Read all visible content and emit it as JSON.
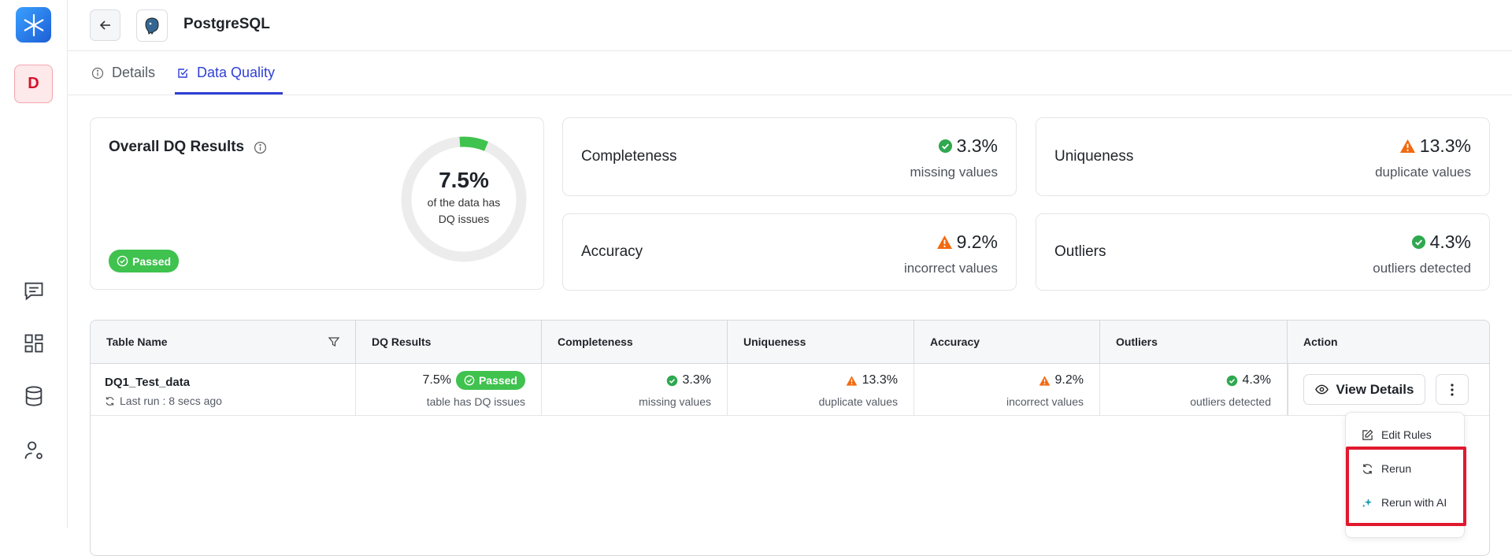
{
  "header": {
    "title": "PostgreSQL"
  },
  "sidebar": {
    "avatar": "D"
  },
  "tabs": [
    "Details",
    "Data Quality"
  ],
  "overall": {
    "title": "Overall DQ Results",
    "value": {
      "value": 7.5,
      "label": "7.5%"
    },
    "caption": "of the data has DQ issues",
    "status": "Passed"
  },
  "metrics": [
    {
      "name": "Completeness",
      "value": "3.3%",
      "caption": "missing values",
      "status": "ok"
    },
    {
      "name": "Uniqueness",
      "value": "13.3%",
      "caption": "duplicate values",
      "status": "warn"
    },
    {
      "name": "Accuracy",
      "value": "9.2%",
      "caption": "incorrect values",
      "status": "warn"
    },
    {
      "name": "Outliers",
      "value": "4.3%",
      "caption": "outliers detected",
      "status": "ok"
    }
  ],
  "table": {
    "columns": [
      "Table Name",
      "DQ Results",
      "Completeness",
      "Uniqueness",
      "Accuracy",
      "Outliers",
      "Action"
    ],
    "rows": [
      {
        "name": "DQ1_Test_data",
        "last_run": "Last run : 8 secs ago",
        "dq_result": "7.5%",
        "dq_status": "Passed",
        "dq_caption": "table has DQ issues",
        "metrics": [
          {
            "value": "3.3%",
            "caption": "missing values",
            "status": "ok"
          },
          {
            "value": "13.3%",
            "caption": "duplicate values",
            "status": "warn"
          },
          {
            "value": "9.2%",
            "caption": "incorrect values",
            "status": "warn"
          },
          {
            "value": "4.3%",
            "caption": "outliers detected",
            "status": "ok"
          }
        ],
        "action": "View Details"
      }
    ]
  },
  "menu": [
    "Edit Rules",
    "Rerun",
    "Rerun with AI"
  ]
}
